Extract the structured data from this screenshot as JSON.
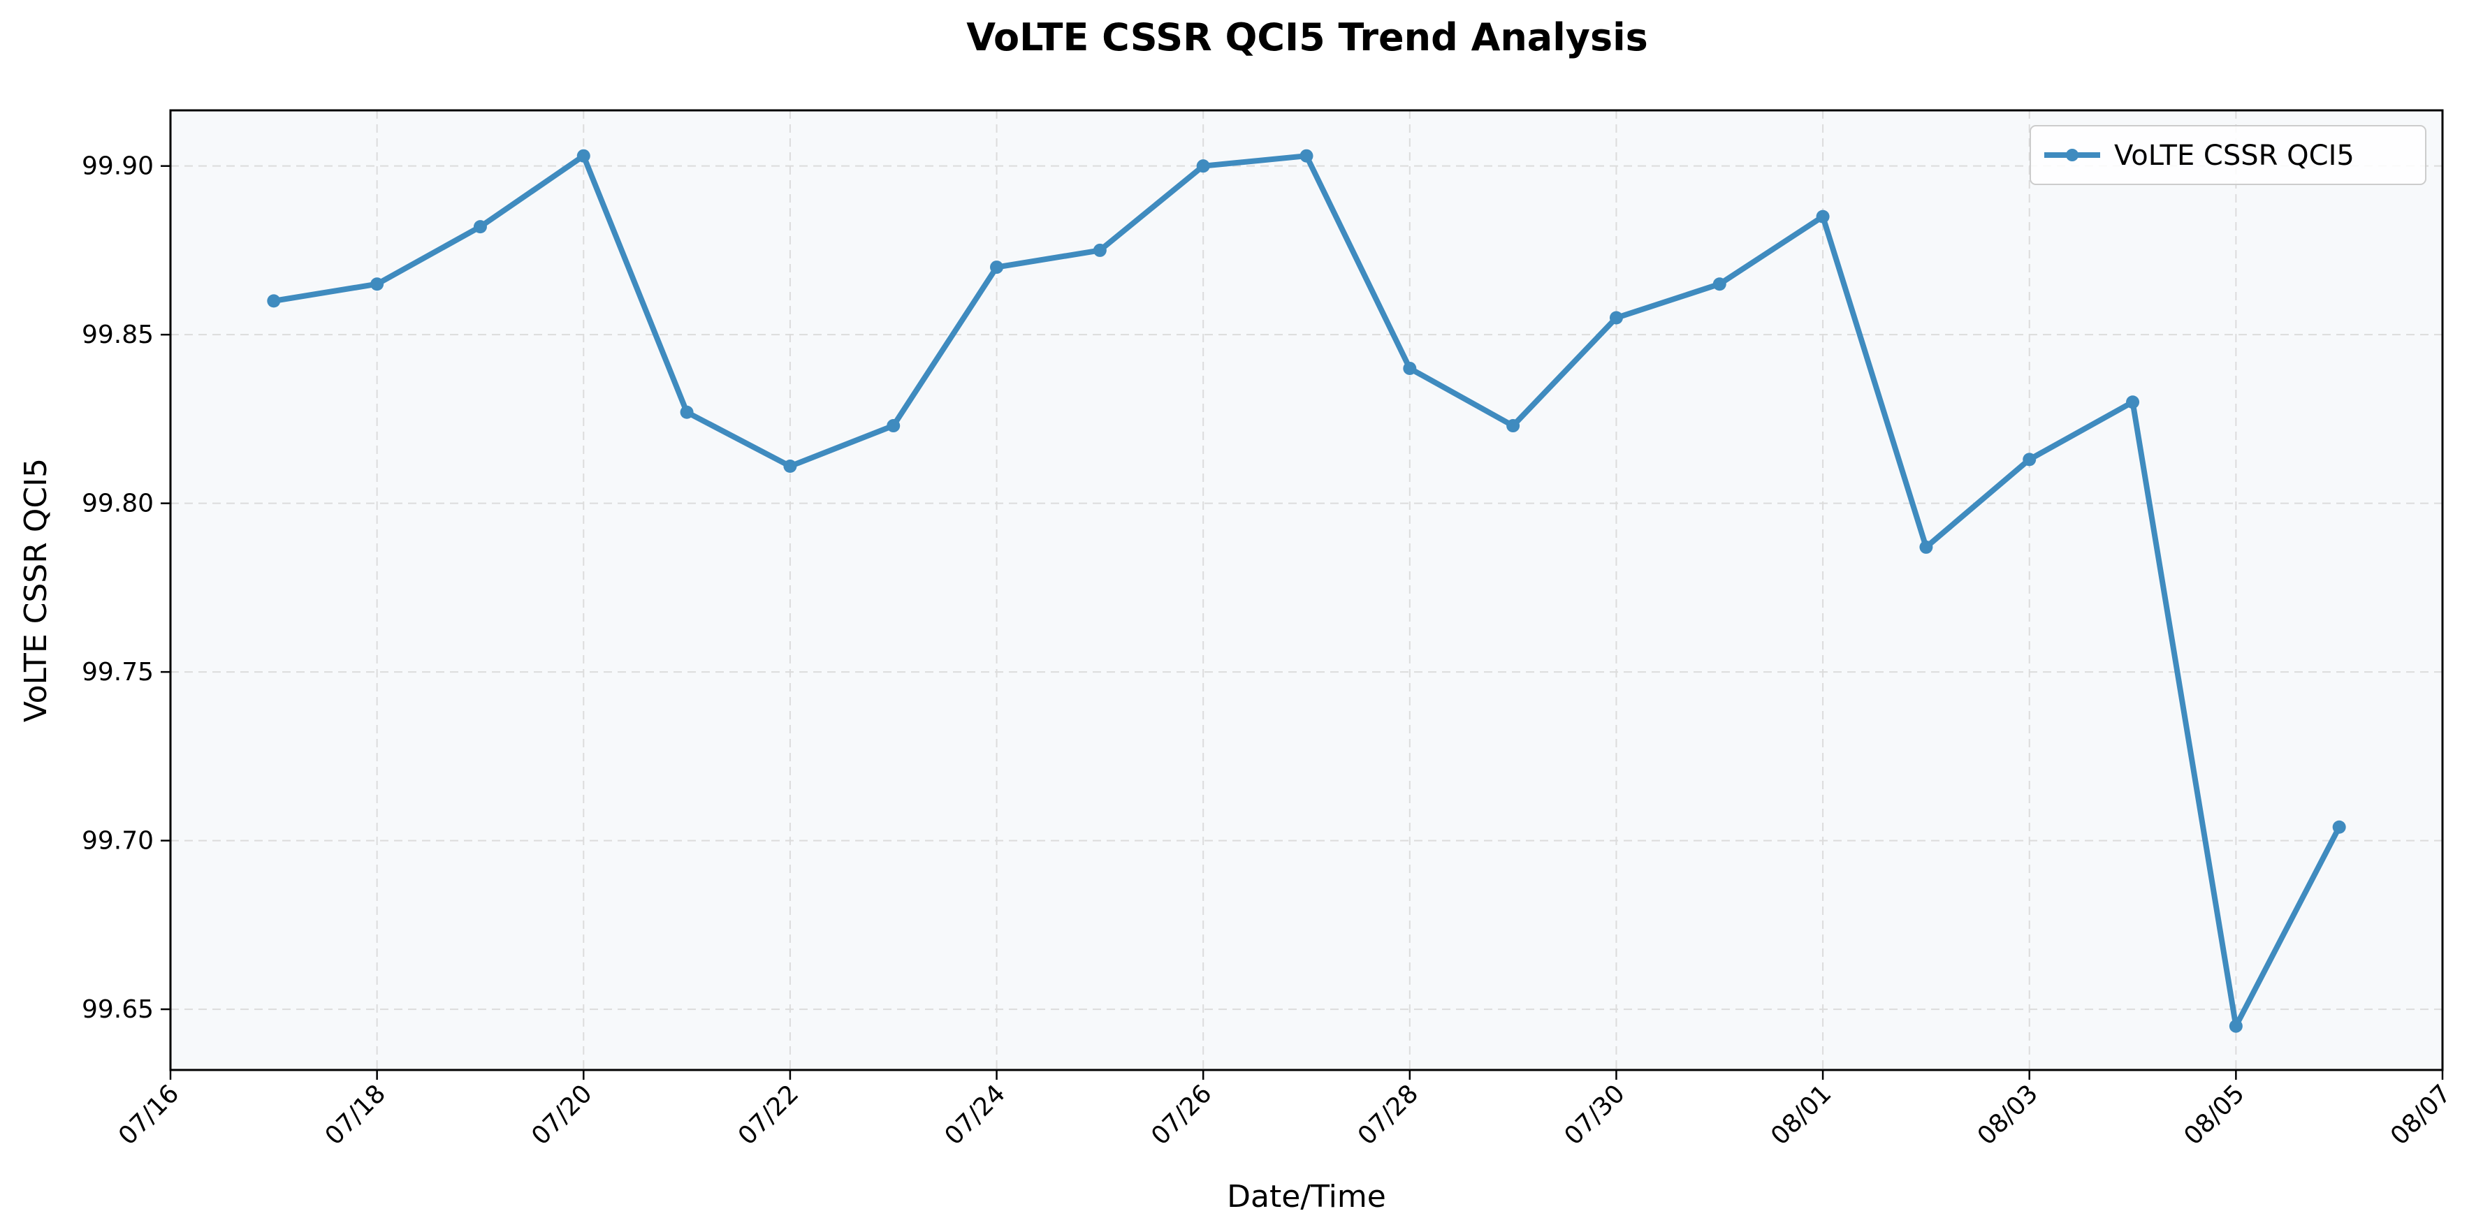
{
  "chart_data": {
    "type": "line",
    "title": "VoLTE CSSR QCI5 Trend Analysis",
    "xlabel": "Date/Time",
    "ylabel": "VoLTE CSSR QCI5",
    "x_tick_labels": [
      "07/16",
      "07/18",
      "07/20",
      "07/22",
      "07/24",
      "07/26",
      "07/28",
      "07/30",
      "08/01",
      "08/03",
      "08/05",
      "08/07"
    ],
    "y_ticks": [
      99.65,
      99.7,
      99.75,
      99.8,
      99.85,
      99.9
    ],
    "y_tick_labels": [
      "99.65",
      "99.70",
      "99.75",
      "99.80",
      "99.85",
      "99.90"
    ],
    "ylim": [
      99.632,
      99.9165
    ],
    "grid": true,
    "legend_position": "top-right",
    "colors": {
      "series": "#3f8bbf",
      "plot_bg": "#f7f9fb"
    },
    "series": [
      {
        "name": "VoLTE CSSR QCI5",
        "x": [
          "07/17",
          "07/18",
          "07/19",
          "07/20",
          "07/21",
          "07/22",
          "07/23",
          "07/24",
          "07/25",
          "07/26",
          "07/27",
          "07/28",
          "07/29",
          "07/30",
          "07/31",
          "08/01",
          "08/02",
          "08/03",
          "08/04",
          "08/05",
          "08/06"
        ],
        "values": [
          99.86,
          99.865,
          99.882,
          99.903,
          99.827,
          99.811,
          99.823,
          99.87,
          99.875,
          99.9,
          99.903,
          99.84,
          99.823,
          99.855,
          99.865,
          99.885,
          99.787,
          99.813,
          99.83,
          99.645,
          99.704
        ]
      }
    ]
  }
}
